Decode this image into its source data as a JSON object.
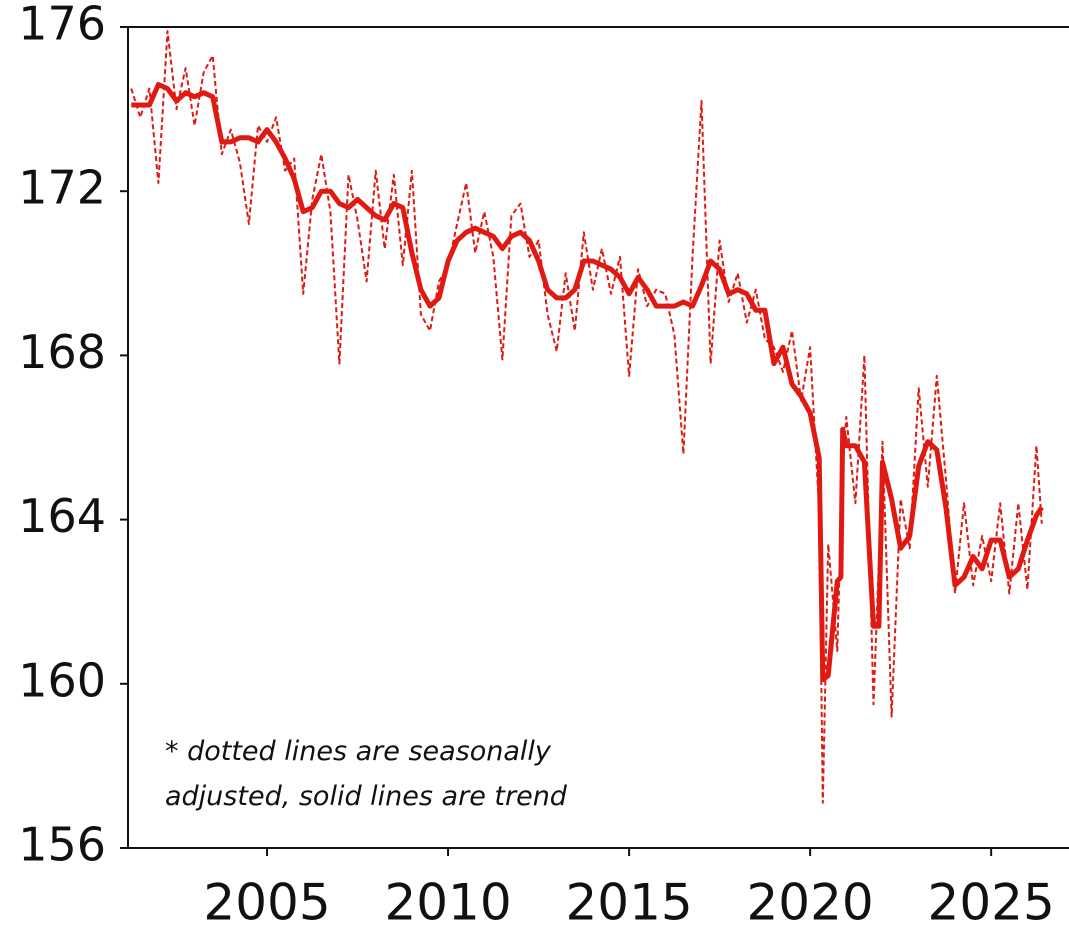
{
  "chart_data": {
    "type": "line",
    "x": [
      2001.25,
      2001.5,
      2001.75,
      2002.0,
      2002.25,
      2002.5,
      2002.75,
      2003.0,
      2003.25,
      2003.5,
      2003.75,
      2004.0,
      2004.25,
      2004.5,
      2004.75,
      2005.0,
      2005.25,
      2005.5,
      2005.75,
      2006.0,
      2006.25,
      2006.5,
      2006.75,
      2007.0,
      2007.25,
      2007.5,
      2007.75,
      2008.0,
      2008.25,
      2008.5,
      2008.75,
      2009.0,
      2009.25,
      2009.5,
      2009.75,
      2010.0,
      2010.25,
      2010.5,
      2010.75,
      2011.0,
      2011.25,
      2011.5,
      2011.75,
      2012.0,
      2012.25,
      2012.5,
      2012.75,
      2013.0,
      2013.25,
      2013.5,
      2013.75,
      2014.0,
      2014.25,
      2014.5,
      2014.75,
      2015.0,
      2015.25,
      2015.5,
      2015.75,
      2016.0,
      2016.25,
      2016.5,
      2016.75,
      2017.0,
      2017.25,
      2017.5,
      2017.75,
      2018.0,
      2018.25,
      2018.5,
      2018.75,
      2019.0,
      2019.25,
      2019.5,
      2019.75,
      2020.0,
      2020.25,
      2020.35,
      2020.5,
      2020.75,
      2020.85,
      2020.9,
      2021.0,
      2021.25,
      2021.5,
      2021.75,
      2021.9,
      2022.0,
      2022.25,
      2022.5,
      2022.75,
      2023.0,
      2023.25,
      2023.5,
      2023.75,
      2024.0,
      2024.25,
      2024.5,
      2024.75,
      2025.0,
      2025.25,
      2025.5,
      2025.75,
      2026.0,
      2026.25,
      2026.4
    ],
    "series": [
      {
        "color": "#e01a12",
        "style": "dotted",
        "values": [
          174.5,
          173.8,
          174.5,
          172.2,
          175.9,
          174.0,
          175.0,
          173.6,
          174.9,
          175.3,
          172.9,
          173.5,
          172.7,
          171.2,
          173.6,
          173.2,
          173.8,
          172.5,
          172.8,
          169.5,
          171.8,
          172.9,
          171.5,
          167.8,
          172.4,
          171.3,
          169.8,
          172.5,
          170.6,
          172.4,
          170.2,
          172.5,
          169.0,
          168.6,
          169.8,
          170.2,
          171.2,
          172.2,
          170.5,
          171.5,
          170.4,
          167.9,
          171.4,
          171.7,
          170.4,
          170.8,
          169.0,
          168.1,
          170.0,
          168.6,
          171.0,
          169.6,
          170.6,
          169.5,
          170.4,
          167.5,
          170.1,
          169.2,
          169.6,
          169.5,
          168.5,
          165.6,
          170.4,
          174.2,
          167.8,
          170.8,
          169.3,
          170.0,
          168.8,
          169.6,
          168.4,
          168.2,
          167.6,
          168.6,
          166.9,
          168.2,
          164.2,
          157.1,
          163.4,
          160.8,
          164.0,
          165.4,
          166.5,
          164.4,
          168.0,
          159.5,
          163.0,
          165.9,
          159.2,
          164.5,
          163.3,
          167.2,
          164.8,
          167.5,
          165.0,
          162.2,
          164.4,
          162.4,
          163.6,
          162.5,
          164.4,
          162.2,
          164.4,
          162.3,
          165.8,
          163.9
        ]
      },
      {
        "color": "#e01a12",
        "style": "solid",
        "values": [
          174.1,
          174.1,
          174.1,
          174.6,
          174.5,
          174.2,
          174.4,
          174.3,
          174.4,
          174.3,
          173.2,
          173.2,
          173.3,
          173.3,
          173.2,
          173.5,
          173.2,
          172.8,
          172.3,
          171.5,
          171.6,
          172.0,
          172.0,
          171.7,
          171.6,
          171.8,
          171.6,
          171.4,
          171.3,
          171.7,
          171.6,
          170.5,
          169.6,
          169.2,
          169.4,
          170.3,
          170.8,
          171.0,
          171.1,
          171.0,
          170.9,
          170.6,
          170.9,
          171.0,
          170.8,
          170.3,
          169.6,
          169.4,
          169.4,
          169.6,
          170.3,
          170.3,
          170.2,
          170.1,
          169.9,
          169.5,
          169.9,
          169.6,
          169.2,
          169.2,
          169.2,
          169.3,
          169.2,
          169.7,
          170.3,
          170.1,
          169.5,
          169.6,
          169.5,
          169.1,
          169.1,
          167.8,
          168.2,
          167.3,
          167.0,
          166.6,
          165.5,
          160.1,
          160.2,
          162.5,
          162.6,
          166.2,
          165.8,
          165.8,
          165.4,
          161.4,
          161.4,
          165.4,
          164.5,
          163.3,
          163.6,
          165.3,
          165.9,
          165.7,
          164.3,
          162.4,
          162.6,
          163.1,
          162.8,
          163.5,
          163.5,
          162.6,
          162.8,
          163.5,
          164.1,
          164.3
        ]
      }
    ],
    "xlim": [
      2001.16,
      2027.15
    ],
    "ylim": [
      156,
      176
    ],
    "xticks": [
      2005,
      2010,
      2015,
      2020,
      2025
    ],
    "yticks": [
      156,
      160,
      164,
      168,
      172,
      176
    ],
    "annotation": [
      "* dotted lines are seasonally",
      "adjusted, solid lines are trend"
    ]
  }
}
